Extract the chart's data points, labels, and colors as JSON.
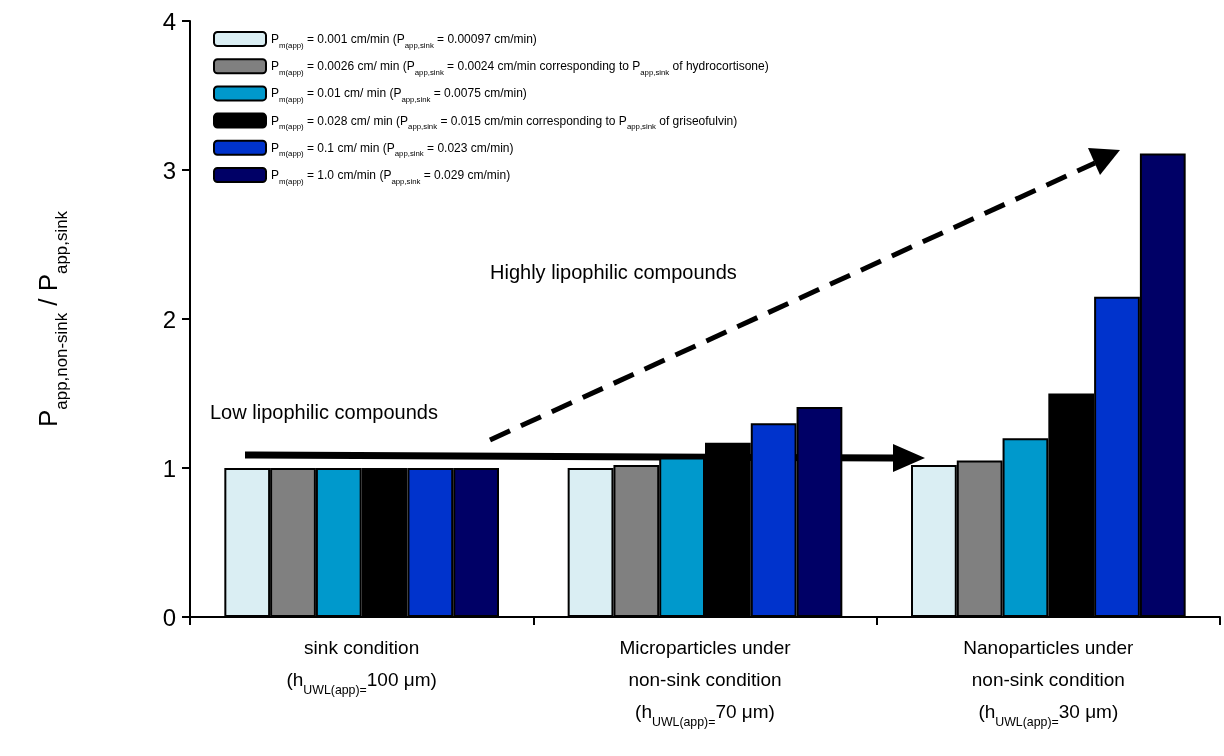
{
  "chart_data": {
    "type": "bar",
    "categories": [
      "sink condition\n(h$_{UWL(app)=}$100 μm)",
      "Microparticles under\nnon-sink condition\n(h$_{UWL(app)=}$70 μm)",
      "Nanoparticles under\nnon-sink condition\n(h$_{UWL(app)=}$30 μm)"
    ],
    "ylabel": "P$_{app,non-sink}$ / P$_{app,sink}$",
    "series": [
      {
        "name": "P$_{m(app)}$ = 0.001 cm/min (P$_{app,sink}$ = 0.00097 cm/min)",
        "color": "#daeef3",
        "values": [
          1.0,
          1.0,
          1.02
        ]
      },
      {
        "name": "P$_{m(app)}$ = 0.0026 cm/ min (P$_{app,sink}$ = 0.0024 cm/min corresponding to P$_{app,sink}$ of hydrocortisone)",
        "color": "#808080",
        "values": [
          1.0,
          1.02,
          1.05
        ]
      },
      {
        "name": "P$_{m(app)}$ = 0.01 cm/ min (P$_{app,sink}$ = 0.0075 cm/min)",
        "color": "#0099cc",
        "values": [
          1.0,
          1.07,
          1.2
        ]
      },
      {
        "name": "P$_{m(app)}$ = 0.028 cm/ min (P$_{app,sink}$ = 0.015 cm/min corresponding to P$_{app,sink}$ of griseofulvin)",
        "color": "#000000",
        "values": [
          1.0,
          1.17,
          1.5
        ]
      },
      {
        "name": "P$_{m(app)}$ = 0.1 cm/ min (P$_{app,sink}$ = 0.023 cm/min)",
        "color": "#0033cc",
        "values": [
          1.0,
          1.3,
          2.15
        ]
      },
      {
        "name": "P$_{m(app)}$ = 1.0 cm/min (P$_{app,sink}$ = 0.029 cm/min)",
        "color": "#000066",
        "values": [
          1.0,
          1.41,
          3.11
        ]
      }
    ],
    "ylim": [
      0,
      4
    ],
    "yticks": [
      0,
      1,
      2,
      3,
      4
    ],
    "legend": "top left",
    "annotations": [
      "Low lipophilic compounds",
      "Highly lipophilic compounds"
    ]
  }
}
